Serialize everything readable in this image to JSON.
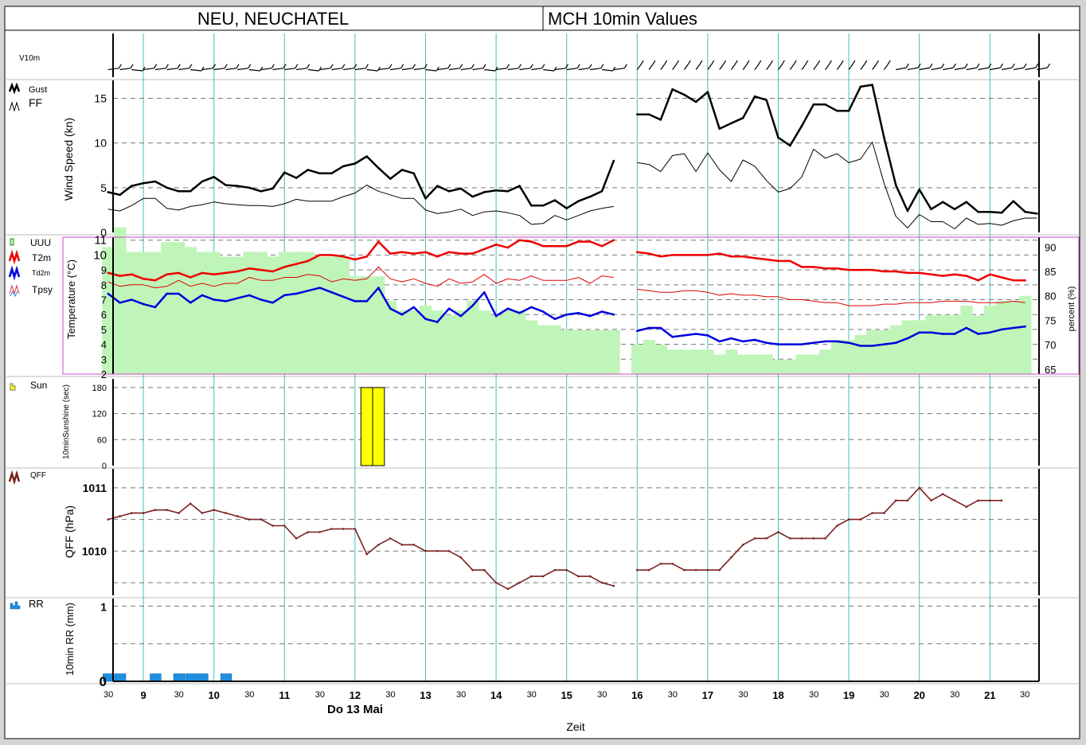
{
  "header": {
    "station": "NEU, NEUCHATEL",
    "product": "MCH 10min Values"
  },
  "x_axis": {
    "title": "Zeit",
    "date_label": "Do 13 Mai",
    "hour_labels": [
      "9",
      "10",
      "11",
      "12",
      "13",
      "14",
      "15",
      "16",
      "17",
      "18",
      "19",
      "20",
      "21"
    ],
    "half_label": "30"
  },
  "colors": {
    "gust": "#000000",
    "ff": "#000000",
    "t2m": "#ee0000",
    "tpsy": "#dd0000",
    "td2m": "#0000dd",
    "uuu": "#bff5b8",
    "sun": "#ffff00",
    "qff": "#7b2020",
    "rr": "#1e90e0",
    "gridline": "#40c0c0",
    "humidity_frame": "#cc44cc"
  },
  "panels": {
    "wind_barbs": {
      "label": "V10m"
    },
    "wind": {
      "legend": [
        "Gust",
        "FF"
      ],
      "ylabel": "Wind Speed (kn)",
      "yticks": [
        "0",
        "5",
        "10",
        "15"
      ]
    },
    "temp": {
      "legend": [
        "UUU",
        "T2m",
        "Td2m",
        "Tpsy"
      ],
      "ylabel": "Temperature (°C)",
      "ylabel_right": "percent (%)",
      "yticks_left": [
        "2",
        "3",
        "4",
        "5",
        "6",
        "7",
        "8",
        "9",
        "10",
        "11"
      ],
      "yticks_right": [
        "65",
        "70",
        "75",
        "80",
        "85",
        "90"
      ]
    },
    "sun": {
      "legend": [
        "Sun"
      ],
      "ylabel": "10minSunshine (sec)",
      "yticks": [
        "0",
        "60",
        "120",
        "180"
      ]
    },
    "qff": {
      "legend": [
        "QFF"
      ],
      "ylabel": "QFF (hPa)",
      "yticks": [
        "1010",
        "1011"
      ]
    },
    "rr": {
      "legend": [
        "RR"
      ],
      "ylabel": "10min RR (mm)",
      "yticks": [
        "0",
        "1"
      ]
    }
  },
  "chart_data": [
    {
      "type": "line",
      "title": "Wind Speed",
      "ylabel": "Wind Speed (kn)",
      "ylim": [
        0,
        17
      ],
      "x_hours_start": 8.5,
      "step_minutes": 10,
      "series": [
        {
          "name": "Gust",
          "values": [
            4.5,
            4.2,
            5.2,
            5.5,
            5.7,
            5,
            4.6,
            4.6,
            5.7,
            6.2,
            5.3,
            5.2,
            5,
            4.6,
            4.9,
            6.7,
            6.1,
            7,
            6.6,
            6.6,
            7.4,
            7.7,
            8.5,
            7.2,
            6,
            7,
            6.6,
            3.8,
            5.2,
            4.6,
            4.9,
            4,
            4.5,
            4.7,
            4.6,
            5.2,
            3,
            3,
            3.6,
            2.7,
            3.5,
            4,
            4.6,
            8,
            null,
            13.2,
            13.2,
            12.6,
            16,
            15.4,
            14.6,
            15.7,
            11.6,
            12.2,
            12.8,
            15.2,
            14.8,
            10.6,
            9.7,
            11.9,
            14.3,
            14.3,
            13.6,
            13.6,
            16.3,
            16.5,
            10.6,
            5.3,
            2.4,
            4.8,
            2.6,
            3.4,
            2.6,
            3.4,
            2.3,
            2.3,
            2.2,
            3.5,
            2.3,
            2.1
          ]
        },
        {
          "name": "FF",
          "values": [
            2.6,
            2.4,
            3,
            3.8,
            3.8,
            2.7,
            2.5,
            2.9,
            3.1,
            3.4,
            3.2,
            3.1,
            3,
            3,
            2.9,
            3.2,
            3.7,
            3.5,
            3.5,
            3.5,
            4,
            4.4,
            5.3,
            4.6,
            4.2,
            3.8,
            3.8,
            2.5,
            2.1,
            2.3,
            2.6,
            1.9,
            2.3,
            2.4,
            2.2,
            1.9,
            0.9,
            1,
            1.9,
            1.4,
            1.9,
            2.4,
            2.7,
            2.9,
            null,
            7.8,
            7.6,
            6.8,
            8.6,
            8.8,
            6.8,
            8.9,
            7,
            5.7,
            8.1,
            7.4,
            5.8,
            4.5,
            4.9,
            6.2,
            9.3,
            8.3,
            8.8,
            7.8,
            8.2,
            10.1,
            5.5,
            1.8,
            0.5,
            2,
            1.2,
            1.2,
            0.4,
            1.6,
            0.9,
            1,
            0.8,
            1.3,
            1.6,
            1.6
          ]
        }
      ]
    },
    {
      "type": "line",
      "title": "Temperature",
      "ylabel": "Temperature (°C)",
      "ylim": [
        2,
        11.2
      ],
      "x_hours_start": 8.5,
      "step_minutes": 10,
      "series": [
        {
          "name": "T2m",
          "values": [
            8.8,
            8.6,
            8.7,
            8.4,
            8.3,
            8.7,
            8.8,
            8.5,
            8.8,
            8.7,
            8.8,
            8.9,
            9.1,
            9,
            8.9,
            9.2,
            9.4,
            9.6,
            10,
            10,
            9.9,
            9.7,
            9.9,
            10.9,
            10.1,
            10.2,
            10.1,
            10.2,
            9.9,
            10.2,
            10.1,
            10.1,
            10.4,
            10.7,
            10.5,
            11,
            10.9,
            10.6,
            10.6,
            10.6,
            10.9,
            10.9,
            10.6,
            11,
            null,
            10.2,
            10.1,
            9.9,
            10,
            10,
            10,
            10,
            10.1,
            9.9,
            9.9,
            9.8,
            9.7,
            9.6,
            9.6,
            9.2,
            9.2,
            9.1,
            9.1,
            9,
            9,
            9,
            8.9,
            8.9,
            8.8,
            8.8,
            8.7,
            8.6,
            8.7,
            8.6,
            8.3,
            8.7,
            8.5,
            8.3,
            8.3
          ]
        },
        {
          "name": "Tpsy",
          "values": [
            8.2,
            7.9,
            8,
            8,
            7.8,
            7.9,
            8.3,
            7.9,
            8.1,
            7.9,
            8.1,
            8.1,
            8.5,
            8.3,
            8.3,
            8.5,
            8.5,
            8.7,
            8.6,
            8.2,
            8.4,
            8.3,
            8.4,
            9.2,
            8.4,
            8.2,
            8.4,
            8.1,
            7.9,
            8.4,
            8.1,
            8.2,
            8.7,
            8.1,
            8.4,
            8.3,
            8.6,
            8.3,
            8.3,
            8.3,
            8.5,
            8.1,
            8.6,
            8.5,
            null,
            7.7,
            7.6,
            7.5,
            7.5,
            7.6,
            7.6,
            7.5,
            7.3,
            7.4,
            7.3,
            7.3,
            7.2,
            7.2,
            7,
            7,
            6.9,
            6.8,
            6.8,
            6.6,
            6.6,
            6.6,
            6.7,
            6.7,
            6.8,
            6.8,
            6.8,
            6.9,
            6.9,
            6.9,
            6.8,
            6.8,
            6.8,
            6.9,
            6.8
          ]
        },
        {
          "name": "Td2m",
          "values": [
            7.4,
            6.8,
            7,
            6.7,
            6.5,
            7.4,
            7.4,
            6.8,
            7.3,
            7,
            6.9,
            7.1,
            7.3,
            7,
            6.8,
            7.3,
            7.4,
            7.6,
            7.8,
            7.5,
            7.2,
            6.9,
            6.9,
            7.8,
            6.4,
            6,
            6.5,
            5.7,
            5.5,
            6.4,
            5.9,
            6.6,
            7.5,
            5.9,
            6.4,
            6.1,
            6.5,
            6.2,
            5.7,
            6,
            6.1,
            5.9,
            6.2,
            6,
            null,
            4.9,
            5.1,
            5.1,
            4.5,
            4.6,
            4.7,
            4.6,
            4.2,
            4.4,
            4.2,
            4.3,
            4.1,
            4,
            4,
            4,
            4.1,
            4.2,
            4.2,
            4.1,
            3.9,
            3.9,
            4,
            4.1,
            4.4,
            4.8,
            4.8,
            4.7,
            4.7,
            5.1,
            4.7,
            4.8,
            5,
            5.1,
            5.2
          ]
        },
        {
          "name": "UUU",
          "unit": "%",
          "values": [
            90,
            94,
            89,
            89,
            89,
            91,
            91,
            90,
            89,
            89,
            88,
            88,
            89,
            89,
            88,
            89,
            89,
            89,
            88,
            88,
            88,
            84,
            84,
            84,
            79,
            77,
            77,
            78,
            77,
            76,
            77,
            79,
            77,
            76,
            77,
            77,
            75,
            74,
            74,
            73,
            73,
            73,
            73,
            73,
            null,
            70,
            71,
            70,
            69,
            69,
            69,
            69,
            68,
            69,
            68,
            68,
            68,
            67,
            67,
            68,
            68,
            69,
            71,
            71,
            72,
            73,
            73,
            74,
            75,
            75,
            76,
            76,
            76,
            78,
            76,
            78,
            79,
            79,
            80
          ]
        }
      ]
    },
    {
      "type": "bar",
      "title": "10min Sunshine",
      "ylabel": "10minSunshine (sec)",
      "ylim": [
        0,
        200
      ],
      "x_hours": [
        12.167,
        12.333
      ],
      "values": [
        180,
        180
      ]
    },
    {
      "type": "line",
      "title": "QFF",
      "ylabel": "QFF (hPa)",
      "ylim": [
        1009.3,
        1011.3
      ],
      "x_hours_start": 8.5,
      "step_minutes": 10,
      "series": [
        {
          "name": "QFF",
          "values": [
            1010.5,
            1010.55,
            1010.6,
            1010.6,
            1010.65,
            1010.65,
            1010.6,
            1010.75,
            1010.6,
            1010.65,
            1010.6,
            1010.55,
            1010.5,
            1010.5,
            1010.4,
            1010.4,
            1010.2,
            1010.3,
            1010.3,
            1010.35,
            1010.35,
            1010.35,
            1009.95,
            1010.1,
            1010.2,
            1010.1,
            1010.1,
            1010.0,
            1010.0,
            1010.0,
            1009.9,
            1009.7,
            1009.7,
            1009.5,
            1009.4,
            1009.5,
            1009.6,
            1009.6,
            1009.7,
            1009.7,
            1009.6,
            1009.6,
            1009.5,
            1009.45,
            null,
            1009.7,
            1009.7,
            1009.8,
            1009.8,
            1009.7,
            1009.7,
            1009.7,
            1009.7,
            1009.9,
            1010.1,
            1010.2,
            1010.2,
            1010.3,
            1010.2,
            1010.2,
            1010.2,
            1010.2,
            1010.4,
            1010.5,
            1010.5,
            1010.6,
            1010.6,
            1010.8,
            1010.8,
            1011.0,
            1010.8,
            1010.9,
            1010.8,
            1010.7,
            1010.8,
            1010.8,
            1010.8
          ]
        }
      ]
    },
    {
      "type": "bar",
      "title": "10min RR",
      "ylabel": "10min RR (mm)",
      "ylim": [
        0,
        1.1
      ],
      "x_hours": [
        8.5,
        8.667,
        9.167,
        9.5,
        9.667,
        9.833,
        10.167
      ],
      "values": [
        0.1,
        0.1,
        0.1,
        0.1,
        0.1,
        0.1,
        0.1
      ]
    }
  ]
}
